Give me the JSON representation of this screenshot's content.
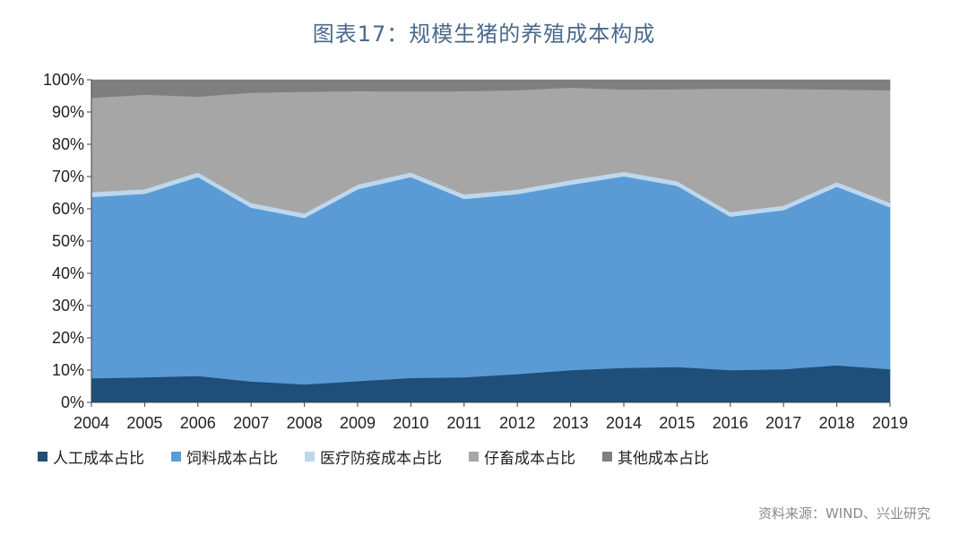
{
  "title": "图表17：规模生猪的养殖成本构成",
  "source": "资料来源：WIND、兴业研究",
  "chart_data": {
    "type": "area",
    "stacked": true,
    "x": [
      "2004",
      "2005",
      "2006",
      "2007",
      "2008",
      "2009",
      "2010",
      "2011",
      "2012",
      "2013",
      "2014",
      "2015",
      "2016",
      "2017",
      "2018",
      "2019"
    ],
    "yticks": [
      "0%",
      "10%",
      "20%",
      "30%",
      "40%",
      "50%",
      "60%",
      "70%",
      "80%",
      "90%",
      "100%"
    ],
    "ylim": [
      0,
      100
    ],
    "unit": "%",
    "series": [
      {
        "name": "人工成本占比",
        "color": "#1f4e79",
        "values": [
          7.5,
          7.8,
          8.2,
          6.5,
          5.6,
          6.6,
          7.6,
          7.8,
          8.8,
          10.0,
          10.7,
          11.0,
          10.0,
          10.3,
          11.5,
          10.3
        ]
      },
      {
        "name": "饲料成本占比",
        "color": "#5b9bd5",
        "values": [
          56.3,
          57.0,
          61.8,
          54.0,
          51.7,
          59.6,
          62.4,
          55.4,
          55.9,
          57.6,
          59.5,
          56.3,
          47.7,
          49.4,
          55.5,
          50.3
        ]
      },
      {
        "name": "医疗防疫成本占比",
        "color": "#bdd7ee",
        "values": [
          1.4,
          1.3,
          1.3,
          1.3,
          1.3,
          1.3,
          1.3,
          1.3,
          1.3,
          1.3,
          1.3,
          1.3,
          1.3,
          1.3,
          1.3,
          1.3
        ]
      },
      {
        "name": "仔畜成本占比",
        "color": "#a6a6a6",
        "values": [
          29.2,
          29.3,
          23.5,
          34.2,
          37.7,
          29.0,
          25.1,
          32.0,
          30.8,
          28.7,
          25.5,
          28.5,
          38.3,
          36.2,
          28.7,
          34.9
        ]
      },
      {
        "name": "其他成本占比",
        "color": "#7f7f7f",
        "values": [
          5.6,
          4.6,
          5.2,
          4.0,
          3.7,
          3.5,
          3.6,
          3.5,
          3.2,
          2.4,
          3.0,
          2.9,
          2.7,
          2.8,
          3.0,
          3.2
        ]
      }
    ]
  }
}
